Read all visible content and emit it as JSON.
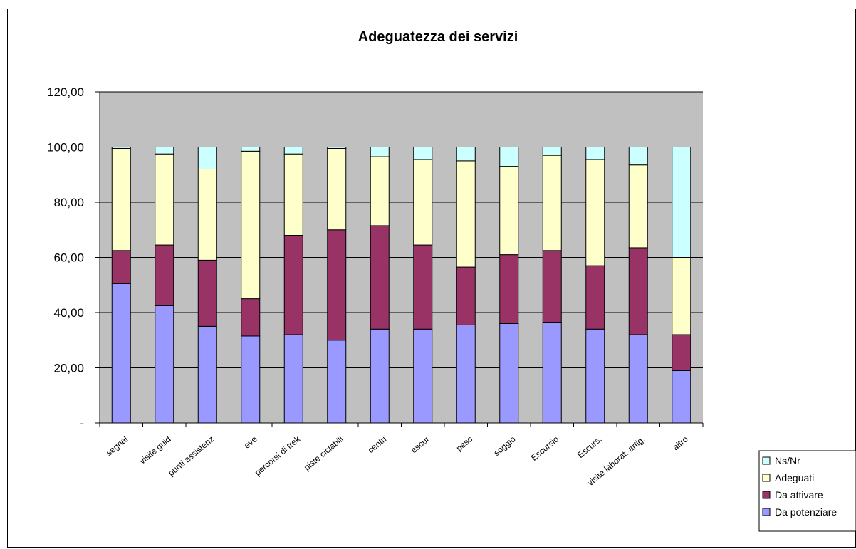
{
  "chart_data": {
    "type": "bar",
    "stacked": true,
    "title": "Adeguatezza dei servizi",
    "xlabel": "",
    "ylabel": "",
    "ylim": [
      0,
      120
    ],
    "y_ticks": [
      "-",
      "20,00",
      "40,00",
      "60,00",
      "80,00",
      "100,00",
      "120,00"
    ],
    "plot_background": "#C0C0C0",
    "grid": true,
    "legend_position": "right",
    "categories": [
      "segnal",
      "visite guid",
      "punti assistenz",
      "eve",
      "percorsi di trek",
      "piste ciclabili",
      "centri",
      "escur",
      "pesc",
      "soggio",
      "Escursio",
      "Escurs.",
      "visite laborat. artig.",
      "altro"
    ],
    "series": [
      {
        "name": "Da potenziare",
        "color": "#9999FF",
        "values": [
          50.5,
          42.5,
          35.0,
          31.5,
          32.0,
          30.0,
          34.0,
          34.0,
          35.5,
          36.0,
          36.5,
          34.0,
          32.0,
          19.0
        ]
      },
      {
        "name": "Da attivare",
        "color": "#993366",
        "values": [
          12.0,
          22.0,
          24.0,
          13.5,
          36.0,
          40.0,
          37.5,
          30.5,
          21.0,
          25.0,
          26.0,
          23.0,
          31.5,
          13.0
        ]
      },
      {
        "name": "Adeguati",
        "color": "#FFFFCC",
        "values": [
          37.0,
          33.0,
          33.0,
          53.5,
          29.5,
          29.5,
          25.0,
          31.0,
          38.5,
          32.0,
          34.5,
          38.5,
          30.0,
          28.0
        ]
      },
      {
        "name": "Ns/Nr",
        "color": "#CCFFFF",
        "values": [
          0.5,
          2.5,
          8.0,
          1.5,
          2.5,
          0.5,
          3.5,
          4.5,
          5.0,
          7.0,
          3.0,
          4.5,
          6.5,
          40.0
        ]
      }
    ]
  }
}
